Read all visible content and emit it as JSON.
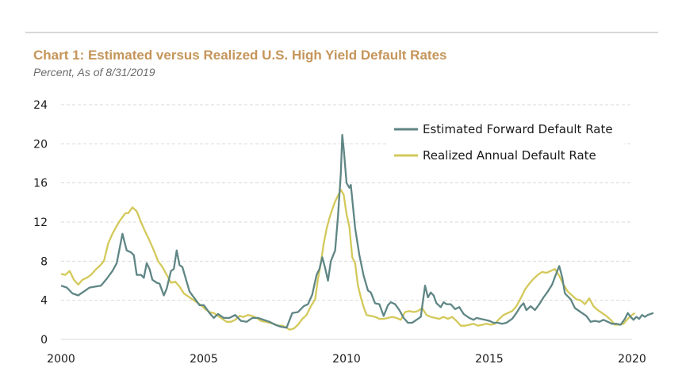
{
  "chart_data": {
    "type": "line",
    "title": "Chart 1: Estimated versus Realized U.S. High Yield Default Rates",
    "subtitle": "Percent, As of 8/31/2019",
    "xlabel": "",
    "ylabel": "",
    "xlim": [
      2000,
      2020
    ],
    "ylim": [
      0,
      24
    ],
    "xticks": [
      2000,
      2005,
      2010,
      2015,
      2020
    ],
    "yticks": [
      0,
      4,
      8,
      12,
      16,
      20,
      24
    ],
    "grid": "horizontal-dashed",
    "legend_position": "top-right",
    "series": [
      {
        "name": "Estimated Forward Default Rate",
        "color": "#5f8685",
        "points": [
          [
            2000.0,
            5.5
          ],
          [
            2000.2,
            5.3
          ],
          [
            2000.4,
            4.7
          ],
          [
            2000.6,
            4.5
          ],
          [
            2000.8,
            4.9
          ],
          [
            2001.0,
            5.3
          ],
          [
            2001.2,
            5.4
          ],
          [
            2001.4,
            5.5
          ],
          [
            2001.6,
            6.2
          ],
          [
            2001.8,
            7.0
          ],
          [
            2001.95,
            7.8
          ],
          [
            2002.05,
            9.3
          ],
          [
            2002.15,
            10.8
          ],
          [
            2002.3,
            9.1
          ],
          [
            2002.45,
            8.9
          ],
          [
            2002.55,
            8.6
          ],
          [
            2002.65,
            6.6
          ],
          [
            2002.8,
            6.6
          ],
          [
            2002.9,
            6.3
          ],
          [
            2003.0,
            7.8
          ],
          [
            2003.1,
            7.2
          ],
          [
            2003.2,
            6.1
          ],
          [
            2003.35,
            5.8
          ],
          [
            2003.45,
            5.7
          ],
          [
            2003.6,
            4.5
          ],
          [
            2003.7,
            5.2
          ],
          [
            2003.85,
            7.0
          ],
          [
            2003.95,
            7.2
          ],
          [
            2004.05,
            9.1
          ],
          [
            2004.15,
            7.6
          ],
          [
            2004.25,
            7.4
          ],
          [
            2004.35,
            6.4
          ],
          [
            2004.5,
            4.9
          ],
          [
            2004.7,
            4.1
          ],
          [
            2004.85,
            3.5
          ],
          [
            2005.0,
            3.5
          ],
          [
            2005.2,
            2.7
          ],
          [
            2005.35,
            2.2
          ],
          [
            2005.5,
            2.6
          ],
          [
            2005.7,
            2.2
          ],
          [
            2005.9,
            2.2
          ],
          [
            2006.1,
            2.5
          ],
          [
            2006.3,
            1.9
          ],
          [
            2006.5,
            1.8
          ],
          [
            2006.7,
            2.2
          ],
          [
            2006.9,
            2.2
          ],
          [
            2007.1,
            2.0
          ],
          [
            2007.3,
            1.8
          ],
          [
            2007.5,
            1.5
          ],
          [
            2007.7,
            1.3
          ],
          [
            2007.9,
            1.2
          ],
          [
            2008.1,
            2.7
          ],
          [
            2008.3,
            2.8
          ],
          [
            2008.5,
            3.4
          ],
          [
            2008.65,
            3.6
          ],
          [
            2008.8,
            4.6
          ],
          [
            2008.95,
            6.6
          ],
          [
            2009.05,
            7.2
          ],
          [
            2009.15,
            8.4
          ],
          [
            2009.25,
            7.3
          ],
          [
            2009.35,
            6.0
          ],
          [
            2009.45,
            8.0
          ],
          [
            2009.6,
            9.1
          ],
          [
            2009.7,
            12.6
          ],
          [
            2009.8,
            17.0
          ],
          [
            2009.85,
            20.9
          ],
          [
            2009.9,
            19.5
          ],
          [
            2010.0,
            16.0
          ],
          [
            2010.1,
            15.5
          ],
          [
            2010.15,
            15.8
          ],
          [
            2010.3,
            11.4
          ],
          [
            2010.45,
            8.6
          ],
          [
            2010.6,
            6.5
          ],
          [
            2010.75,
            5.0
          ],
          [
            2010.85,
            4.8
          ],
          [
            2011.0,
            3.7
          ],
          [
            2011.15,
            3.6
          ],
          [
            2011.3,
            2.4
          ],
          [
            2011.45,
            3.5
          ],
          [
            2011.55,
            3.8
          ],
          [
            2011.7,
            3.6
          ],
          [
            2011.85,
            3.0
          ],
          [
            2012.0,
            2.2
          ],
          [
            2012.15,
            1.7
          ],
          [
            2012.3,
            1.7
          ],
          [
            2012.45,
            2.0
          ],
          [
            2012.6,
            2.3
          ],
          [
            2012.75,
            5.5
          ],
          [
            2012.85,
            4.3
          ],
          [
            2012.95,
            4.8
          ],
          [
            2013.05,
            4.5
          ],
          [
            2013.15,
            3.7
          ],
          [
            2013.3,
            3.3
          ],
          [
            2013.4,
            3.8
          ],
          [
            2013.5,
            3.6
          ],
          [
            2013.65,
            3.6
          ],
          [
            2013.8,
            3.1
          ],
          [
            2013.95,
            3.3
          ],
          [
            2014.1,
            2.6
          ],
          [
            2014.3,
            2.2
          ],
          [
            2014.45,
            2.0
          ],
          [
            2014.55,
            2.2
          ],
          [
            2014.7,
            2.1
          ],
          [
            2014.85,
            2.0
          ],
          [
            2015.0,
            1.9
          ],
          [
            2015.15,
            1.7
          ],
          [
            2015.3,
            1.7
          ],
          [
            2015.45,
            1.6
          ],
          [
            2015.6,
            1.7
          ],
          [
            2015.8,
            2.1
          ],
          [
            2015.95,
            2.7
          ],
          [
            2016.1,
            3.4
          ],
          [
            2016.2,
            3.7
          ],
          [
            2016.3,
            3.0
          ],
          [
            2016.45,
            3.4
          ],
          [
            2016.6,
            3.0
          ],
          [
            2016.75,
            3.6
          ],
          [
            2016.9,
            4.3
          ],
          [
            2017.05,
            4.9
          ],
          [
            2017.2,
            5.6
          ],
          [
            2017.3,
            6.4
          ],
          [
            2017.45,
            7.5
          ],
          [
            2017.55,
            6.4
          ],
          [
            2017.65,
            4.7
          ],
          [
            2017.85,
            4.1
          ],
          [
            2018.0,
            3.2
          ],
          [
            2018.2,
            2.8
          ],
          [
            2018.4,
            2.4
          ],
          [
            2018.55,
            1.8
          ],
          [
            2018.7,
            1.9
          ],
          [
            2018.85,
            1.8
          ],
          [
            2019.0,
            2.0
          ],
          [
            2019.15,
            1.8
          ],
          [
            2019.3,
            1.6
          ],
          [
            2019.45,
            1.6
          ],
          [
            2019.6,
            1.5
          ],
          [
            2019.75,
            2.1
          ],
          [
            2019.85,
            2.7
          ],
          [
            2019.95,
            2.3
          ],
          [
            2020.05,
            2.0
          ],
          [
            2020.15,
            2.3
          ],
          [
            2020.25,
            2.1
          ],
          [
            2020.35,
            2.5
          ],
          [
            2020.45,
            2.3
          ],
          [
            2020.55,
            2.5
          ],
          [
            2020.65,
            2.6
          ],
          [
            2020.75,
            2.7
          ]
        ]
      },
      {
        "name": "Realized Annual Default Rate",
        "color": "#d3c95b",
        "points": [
          [
            2000.0,
            6.7
          ],
          [
            2000.15,
            6.6
          ],
          [
            2000.3,
            7.0
          ],
          [
            2000.45,
            6.1
          ],
          [
            2000.6,
            5.6
          ],
          [
            2000.75,
            6.1
          ],
          [
            2000.9,
            6.3
          ],
          [
            2001.05,
            6.6
          ],
          [
            2001.2,
            7.1
          ],
          [
            2001.35,
            7.5
          ],
          [
            2001.5,
            8.0
          ],
          [
            2001.65,
            9.8
          ],
          [
            2001.8,
            10.8
          ],
          [
            2001.95,
            11.6
          ],
          [
            2002.05,
            12.1
          ],
          [
            2002.15,
            12.5
          ],
          [
            2002.25,
            12.9
          ],
          [
            2002.35,
            12.9
          ],
          [
            2002.5,
            13.5
          ],
          [
            2002.65,
            13.1
          ],
          [
            2002.8,
            12.0
          ],
          [
            2002.95,
            11.0
          ],
          [
            2003.1,
            10.1
          ],
          [
            2003.25,
            9.1
          ],
          [
            2003.4,
            8.0
          ],
          [
            2003.55,
            7.4
          ],
          [
            2003.7,
            6.6
          ],
          [
            2003.85,
            5.8
          ],
          [
            2004.0,
            5.9
          ],
          [
            2004.15,
            5.4
          ],
          [
            2004.3,
            4.7
          ],
          [
            2004.45,
            4.4
          ],
          [
            2004.6,
            4.1
          ],
          [
            2004.75,
            3.8
          ],
          [
            2004.9,
            3.5
          ],
          [
            2005.05,
            3.1
          ],
          [
            2005.2,
            2.8
          ],
          [
            2005.35,
            2.7
          ],
          [
            2005.5,
            2.4
          ],
          [
            2005.65,
            2.1
          ],
          [
            2005.8,
            1.8
          ],
          [
            2005.95,
            1.8
          ],
          [
            2006.1,
            2.0
          ],
          [
            2006.25,
            2.4
          ],
          [
            2006.4,
            2.3
          ],
          [
            2006.55,
            2.5
          ],
          [
            2006.7,
            2.4
          ],
          [
            2006.85,
            2.2
          ],
          [
            2007.0,
            1.9
          ],
          [
            2007.15,
            1.8
          ],
          [
            2007.3,
            1.7
          ],
          [
            2007.45,
            1.6
          ],
          [
            2007.6,
            1.4
          ],
          [
            2007.75,
            1.4
          ],
          [
            2007.9,
            1.2
          ],
          [
            2008.0,
            1.0
          ],
          [
            2008.15,
            1.1
          ],
          [
            2008.3,
            1.5
          ],
          [
            2008.45,
            2.1
          ],
          [
            2008.6,
            2.5
          ],
          [
            2008.75,
            3.4
          ],
          [
            2008.9,
            4.1
          ],
          [
            2009.0,
            6.2
          ],
          [
            2009.1,
            7.8
          ],
          [
            2009.2,
            9.8
          ],
          [
            2009.3,
            11.3
          ],
          [
            2009.4,
            12.4
          ],
          [
            2009.5,
            13.3
          ],
          [
            2009.6,
            14.1
          ],
          [
            2009.7,
            14.7
          ],
          [
            2009.8,
            15.3
          ],
          [
            2009.9,
            14.8
          ],
          [
            2010.0,
            12.8
          ],
          [
            2010.1,
            11.5
          ],
          [
            2010.2,
            8.4
          ],
          [
            2010.3,
            7.8
          ],
          [
            2010.4,
            5.5
          ],
          [
            2010.5,
            4.3
          ],
          [
            2010.6,
            3.3
          ],
          [
            2010.7,
            2.5
          ],
          [
            2010.85,
            2.4
          ],
          [
            2011.0,
            2.3
          ],
          [
            2011.15,
            2.1
          ],
          [
            2011.3,
            2.1
          ],
          [
            2011.45,
            2.2
          ],
          [
            2011.6,
            2.3
          ],
          [
            2011.75,
            2.2
          ],
          [
            2011.9,
            2.0
          ],
          [
            2012.05,
            2.8
          ],
          [
            2012.2,
            2.9
          ],
          [
            2012.35,
            2.8
          ],
          [
            2012.5,
            2.9
          ],
          [
            2012.65,
            3.2
          ],
          [
            2012.8,
            2.5
          ],
          [
            2012.95,
            2.3
          ],
          [
            2013.1,
            2.2
          ],
          [
            2013.25,
            2.1
          ],
          [
            2013.4,
            2.3
          ],
          [
            2013.55,
            2.1
          ],
          [
            2013.7,
            2.3
          ],
          [
            2013.85,
            1.9
          ],
          [
            2014.0,
            1.4
          ],
          [
            2014.15,
            1.4
          ],
          [
            2014.3,
            1.5
          ],
          [
            2014.45,
            1.6
          ],
          [
            2014.6,
            1.4
          ],
          [
            2014.75,
            1.5
          ],
          [
            2014.9,
            1.6
          ],
          [
            2015.05,
            1.5
          ],
          [
            2015.2,
            1.6
          ],
          [
            2015.35,
            2.1
          ],
          [
            2015.5,
            2.5
          ],
          [
            2015.65,
            2.7
          ],
          [
            2015.8,
            2.9
          ],
          [
            2015.95,
            3.4
          ],
          [
            2016.1,
            4.2
          ],
          [
            2016.25,
            5.1
          ],
          [
            2016.4,
            5.7
          ],
          [
            2016.55,
            6.2
          ],
          [
            2016.7,
            6.6
          ],
          [
            2016.85,
            6.9
          ],
          [
            2017.0,
            6.8
          ],
          [
            2017.15,
            7.0
          ],
          [
            2017.3,
            7.2
          ],
          [
            2017.45,
            6.5
          ],
          [
            2017.6,
            5.6
          ],
          [
            2017.75,
            4.9
          ],
          [
            2017.9,
            4.5
          ],
          [
            2018.05,
            4.1
          ],
          [
            2018.2,
            4.0
          ],
          [
            2018.35,
            3.6
          ],
          [
            2018.5,
            4.2
          ],
          [
            2018.65,
            3.4
          ],
          [
            2018.8,
            3.0
          ],
          [
            2018.95,
            2.7
          ],
          [
            2019.1,
            2.4
          ],
          [
            2019.25,
            2.0
          ],
          [
            2019.4,
            1.5
          ],
          [
            2019.55,
            1.5
          ],
          [
            2019.7,
            1.6
          ],
          [
            2019.85,
            2.1
          ],
          [
            2020.0,
            2.5
          ],
          [
            2020.1,
            2.7
          ]
        ]
      }
    ]
  }
}
